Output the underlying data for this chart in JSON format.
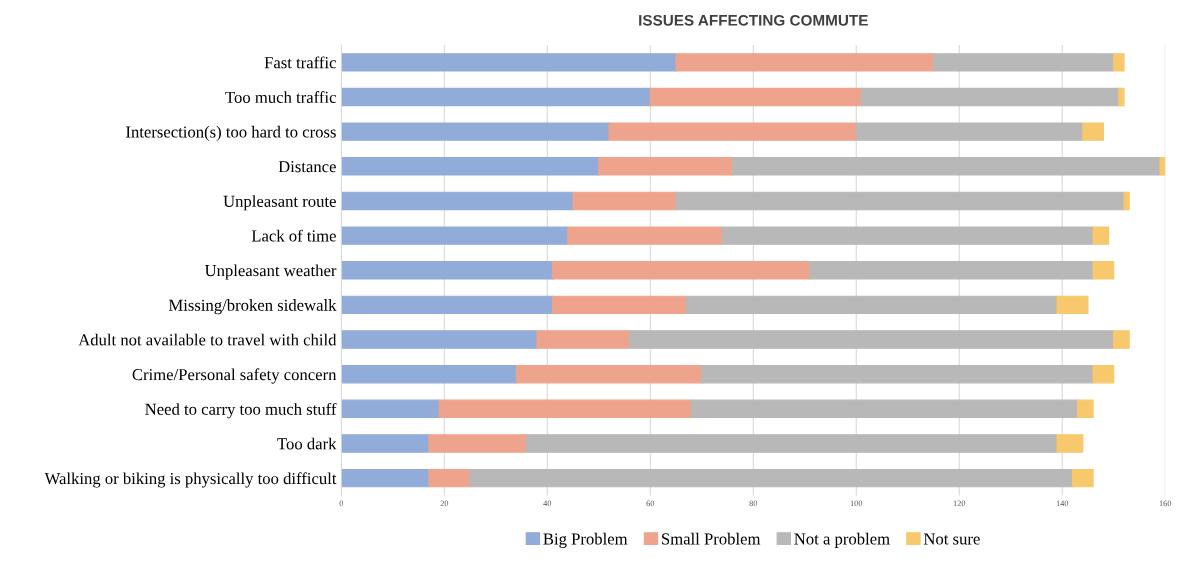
{
  "chart_data": {
    "type": "bar",
    "orientation": "horizontal",
    "stacked": true,
    "title": "ISSUES AFFECTING COMMUTE",
    "categories": [
      "Fast traffic",
      "Too much traffic",
      "Intersection(s) too hard to cross",
      "Distance",
      "Unpleasant route",
      "Lack of time",
      "Unpleasant weather",
      "Missing/broken sidewalk",
      "Adult not available to travel with child",
      "Crime/Personal safety concern",
      "Need to carry too much stuff",
      "Too dark",
      "Walking or biking is physically too difficult"
    ],
    "series": [
      {
        "name": "Big Problem",
        "color": "#92acd9",
        "values": [
          65,
          60,
          52,
          50,
          45,
          44,
          41,
          41,
          38,
          34,
          19,
          17,
          17
        ]
      },
      {
        "name": "Small Problem",
        "color": "#eea48c",
        "values": [
          50,
          41,
          48,
          26,
          20,
          30,
          50,
          26,
          18,
          36,
          49,
          19,
          8
        ]
      },
      {
        "name": "Not a problem",
        "color": "#b8b8b8",
        "values": [
          35,
          50,
          44,
          83,
          87,
          72,
          55,
          72,
          94,
          76,
          75,
          103,
          117
        ]
      },
      {
        "name": "Not sure",
        "color": "#f8c86c",
        "values": [
          2,
          1,
          4,
          1,
          1,
          3,
          4,
          6,
          3,
          4,
          3,
          5,
          4
        ]
      }
    ],
    "xlim": [
      0,
      160
    ],
    "xticks": [
      0,
      20,
      40,
      60,
      80,
      100,
      120,
      140,
      160
    ],
    "grid": "x",
    "legend": "bottom"
  }
}
